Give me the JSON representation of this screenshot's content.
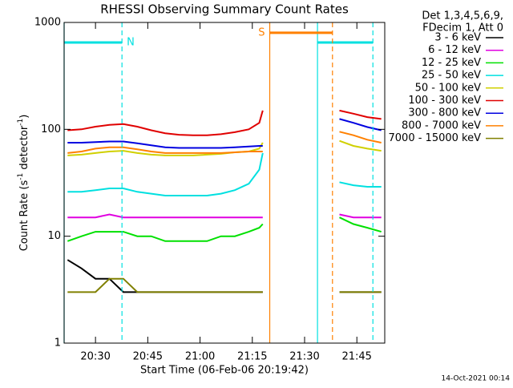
{
  "chart_data": {
    "type": "line",
    "title": "RHESSI Observing Summary Count Rates",
    "x_label": "Start Time (06-Feb-06 20:19:42)",
    "y_label": [
      "Count Rate (s",
      "-1",
      " detector",
      "-1",
      ")"
    ],
    "legend_header": [
      "Det 1,3,4,5,6,9,",
      "FDecim 1, Att 0"
    ],
    "footer": "14-Oct-2021 00:14",
    "log_y": true,
    "xlim": [
      1221,
      1313
    ],
    "xticks": [
      {
        "value": 1230,
        "label": "20:30"
      },
      {
        "value": 1245,
        "label": "20:45"
      },
      {
        "value": 1260,
        "label": "21:00"
      },
      {
        "value": 1275,
        "label": "21:15"
      },
      {
        "value": 1290,
        "label": "21:30"
      },
      {
        "value": 1305,
        "label": "21:45"
      }
    ],
    "ylim": [
      1,
      1000
    ],
    "yticks": [
      1,
      10,
      100,
      1000
    ],
    "x": [
      1222,
      1226,
      1230,
      1234,
      1238,
      1242,
      1246,
      1250,
      1254,
      1258,
      1262,
      1266,
      1270,
      1274,
      1277,
      1278,
      1290,
      1300,
      1304,
      1308,
      1312
    ],
    "series": [
      {
        "name": "3 - 6 keV",
        "color": "#000000",
        "values": [
          6,
          5,
          4,
          4,
          3,
          3,
          3,
          3,
          3,
          3,
          3,
          3,
          3,
          3,
          3,
          3,
          null,
          3,
          3,
          3,
          3
        ]
      },
      {
        "name": "6 - 12 keV",
        "color": "#e000e0",
        "values": [
          15,
          15,
          15,
          16,
          15,
          15,
          15,
          15,
          15,
          15,
          15,
          15,
          15,
          15,
          15,
          15,
          null,
          16,
          15,
          15,
          15
        ]
      },
      {
        "name": "12 - 25 keV",
        "color": "#00e000",
        "values": [
          9,
          10,
          11,
          11,
          11,
          10,
          10,
          9,
          9,
          9,
          9,
          10,
          10,
          11,
          12,
          13,
          null,
          15,
          13,
          12,
          11
        ]
      },
      {
        "name": "25 - 50 keV",
        "color": "#00e0e0",
        "values": [
          26,
          26,
          27,
          28,
          28,
          26,
          25,
          24,
          24,
          24,
          24,
          25,
          27,
          31,
          42,
          60,
          null,
          32,
          30,
          29,
          29
        ]
      },
      {
        "name": "50 - 100 keV",
        "color": "#d0d000",
        "values": [
          57,
          58,
          60,
          62,
          63,
          60,
          58,
          57,
          57,
          57,
          58,
          59,
          61,
          62,
          66,
          75,
          null,
          78,
          70,
          66,
          63
        ]
      },
      {
        "name": "100 - 300 keV",
        "color": "#e00000",
        "values": [
          98,
          100,
          106,
          110,
          112,
          106,
          98,
          92,
          89,
          88,
          88,
          90,
          94,
          100,
          115,
          150,
          null,
          150,
          140,
          130,
          125
        ]
      },
      {
        "name": "300 - 800 keV",
        "color": "#0000e0",
        "values": [
          75,
          75,
          76,
          77,
          77,
          74,
          71,
          68,
          67,
          67,
          67,
          67,
          68,
          69,
          70,
          70,
          null,
          125,
          115,
          105,
          98
        ]
      },
      {
        "name": "800 - 7000 keV",
        "color": "#ff8000",
        "values": [
          60,
          62,
          66,
          68,
          68,
          65,
          62,
          60,
          60,
          60,
          60,
          60,
          61,
          62,
          62,
          62,
          null,
          95,
          88,
          80,
          75
        ]
      },
      {
        "name": "7000 - 15000 keV",
        "color": "#808000",
        "values": [
          3,
          3,
          3,
          4,
          4,
          3,
          3,
          3,
          3,
          3,
          3,
          3,
          3,
          3,
          3,
          3,
          null,
          3,
          3,
          3,
          3
        ]
      }
    ],
    "annotations": [
      {
        "text": "N",
        "start": 1221,
        "end": 1237.6,
        "level": 650,
        "color": "#00e0e0"
      },
      {
        "start": 1293.7,
        "end": 1309.6,
        "level": 650,
        "color": "#00e0e0"
      },
      {
        "text": "S",
        "start": 1280,
        "end": 1298,
        "level": 800,
        "color": "#ff8000"
      }
    ]
  }
}
